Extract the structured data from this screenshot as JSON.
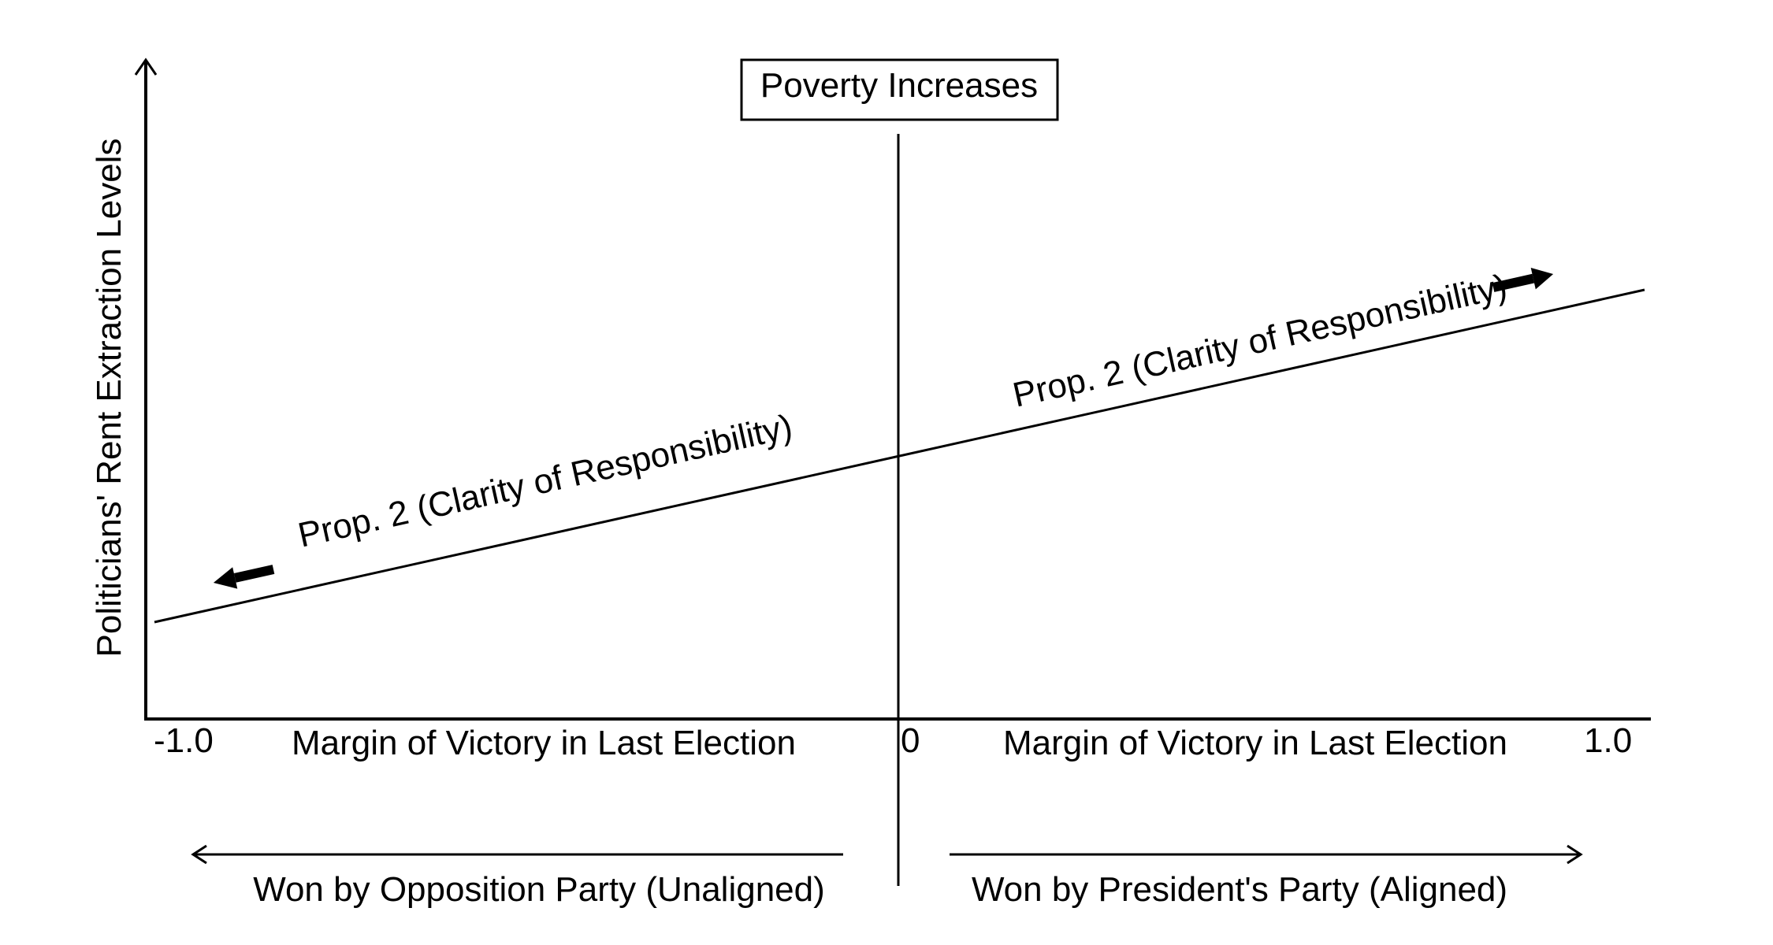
{
  "title_box": {
    "label": "Poverty Increases"
  },
  "y_axis": {
    "label": "Politicians' Rent Extraction Levels"
  },
  "x_axis": {
    "tick_min": "-1.0",
    "tick_zero": "0",
    "tick_max": "1.0",
    "left_label": "Margin of Victory in Last Election",
    "right_label": "Margin of Victory in Last Election"
  },
  "trend": {
    "left_label": "Prop. 2 (Clarity of Responsibility)",
    "right_label": "Prop. 2 (Clarity of Responsibility)"
  },
  "direction": {
    "left_label": "Won by Opposition Party (Unaligned)",
    "right_label": "Won by President's Party (Aligned)"
  },
  "colors": {
    "ink": "#000000",
    "background": "#ffffff"
  }
}
